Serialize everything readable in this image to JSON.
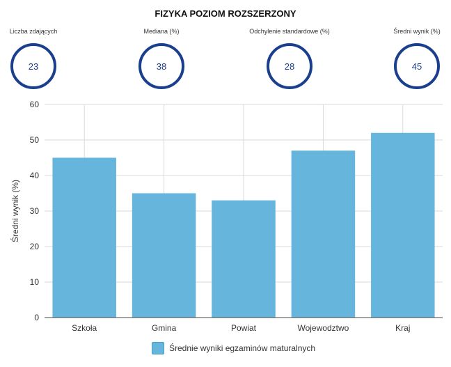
{
  "header": {
    "title": "FIZYKA POZIOM ROZSZERZONY"
  },
  "stats": [
    {
      "label": "Liczba zdających",
      "value": "23"
    },
    {
      "label": "Mediana (%)",
      "value": "38"
    },
    {
      "label": "Odchylenie standardowe (%)",
      "value": "28"
    },
    {
      "label": "Średni wynik (%)",
      "value": "45"
    }
  ],
  "colors": {
    "bar": "#66b5dd",
    "circle": "#1a3f8f",
    "grid": "#d9d9d9"
  },
  "chart_data": {
    "type": "bar",
    "title": "",
    "xlabel": "",
    "ylabel": "Średni wynik (%)",
    "categories": [
      "Szkoła",
      "Gmina",
      "Powiat",
      "Wojewodztwo",
      "Kraj"
    ],
    "series": [
      {
        "name": "Średnie wyniki egzaminów maturalnych",
        "values": [
          45,
          35,
          33,
          47,
          52
        ]
      }
    ],
    "ylim": [
      0,
      60
    ],
    "yticks": [
      0,
      10,
      20,
      30,
      40,
      50,
      60
    ],
    "grid": true,
    "legend": "bottom"
  }
}
